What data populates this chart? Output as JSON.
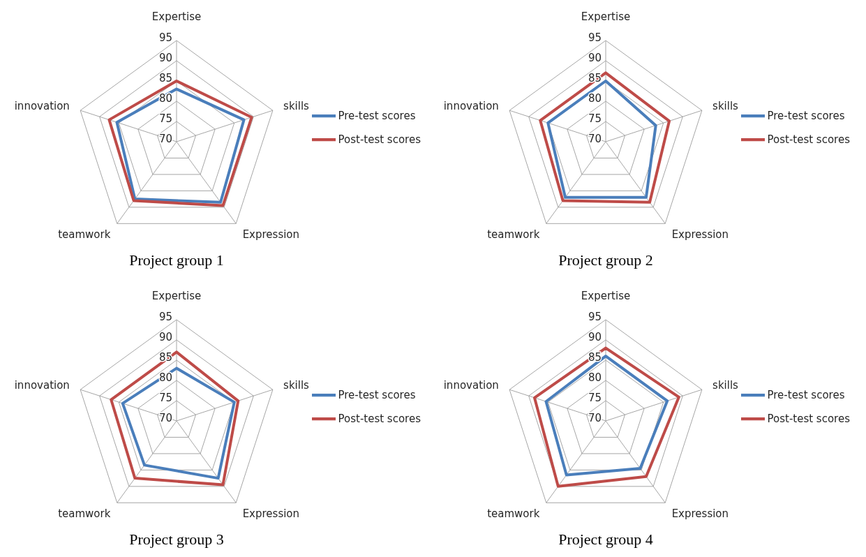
{
  "chart_data": [
    {
      "type": "radar",
      "title": "Project group 1",
      "categories": [
        "Expertise",
        "skills",
        "Expression",
        "teamwork",
        "innovation"
      ],
      "ylim": [
        70,
        95
      ],
      "yticks": [
        70,
        75,
        80,
        85,
        90,
        95
      ],
      "grid": true,
      "legend": "right",
      "marker": "none",
      "line_style": "solid",
      "series": [
        {
          "name": "Pre-test scores",
          "color": "#4a7ebb",
          "values": [
            83,
            87.5,
            88.5,
            87.5,
            85.5
          ]
        },
        {
          "name": "Post-test scores",
          "color": "#be4b48",
          "values": [
            85,
            89.5,
            89.5,
            88,
            87.5
          ]
        }
      ]
    },
    {
      "type": "radar",
      "title": "Project group 2",
      "categories": [
        "Expertise",
        "skills",
        "Expression",
        "teamwork",
        "innovation"
      ],
      "ylim": [
        70,
        95
      ],
      "yticks": [
        70,
        75,
        80,
        85,
        90,
        95
      ],
      "grid": true,
      "legend": "right",
      "marker": "none",
      "line_style": "solid",
      "series": [
        {
          "name": "Pre-test scores",
          "color": "#4a7ebb",
          "values": [
            85,
            83,
            87,
            87,
            85
          ]
        },
        {
          "name": "Post-test scores",
          "color": "#be4b48",
          "values": [
            87,
            86.5,
            88.5,
            88,
            87
          ]
        }
      ]
    },
    {
      "type": "radar",
      "title": "Project group 3",
      "categories": [
        "Expertise",
        "skills",
        "Expression",
        "teamwork",
        "innovation"
      ],
      "ylim": [
        70,
        95
      ],
      "yticks": [
        70,
        75,
        80,
        85,
        90,
        95
      ],
      "grid": true,
      "legend": "right",
      "marker": "none",
      "line_style": "solid",
      "series": [
        {
          "name": "Pre-test scores",
          "color": "#4a7ebb",
          "values": [
            83,
            85,
            87.5,
            83.5,
            84
          ]
        },
        {
          "name": "Post-test scores",
          "color": "#be4b48",
          "values": [
            87,
            86,
            89.5,
            87.5,
            87
          ]
        }
      ]
    },
    {
      "type": "radar",
      "title": "Project group 4",
      "categories": [
        "Expertise",
        "skills",
        "Expression",
        "teamwork",
        "innovation"
      ],
      "ylim": [
        70,
        95
      ],
      "yticks": [
        70,
        75,
        80,
        85,
        90,
        95
      ],
      "grid": true,
      "legend": "right",
      "marker": "none",
      "line_style": "solid",
      "series": [
        {
          "name": "Pre-test scores",
          "color": "#4a7ebb",
          "values": [
            86,
            86,
            84.5,
            86.5,
            85.5
          ]
        },
        {
          "name": "Post-test scores",
          "color": "#be4b48",
          "values": [
            88,
            89,
            87,
            90,
            88.5
          ]
        }
      ]
    }
  ]
}
